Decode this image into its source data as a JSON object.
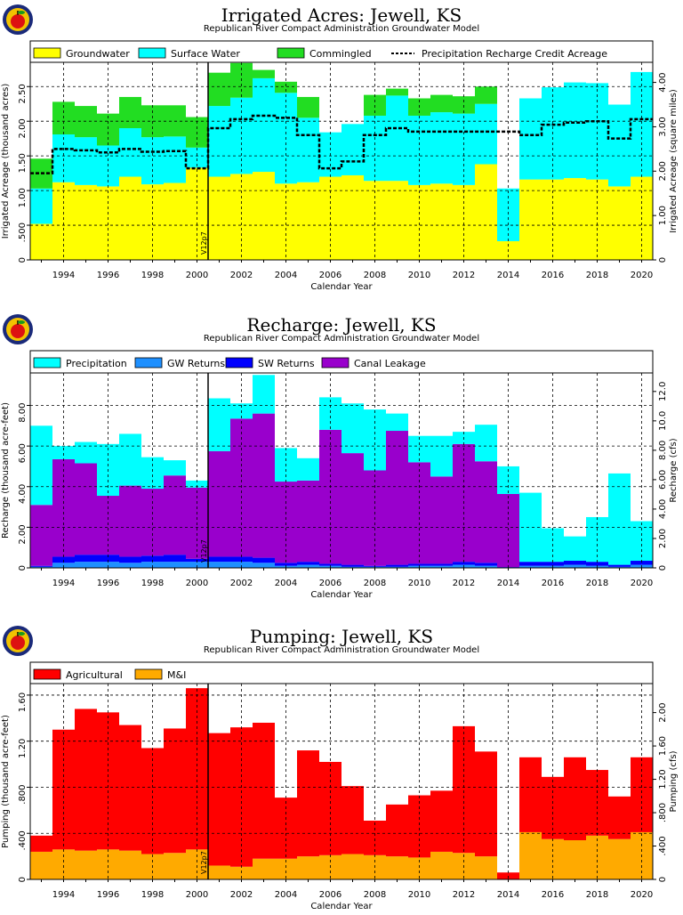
{
  "colors": {
    "groundwater": "#ffff00",
    "surface_water": "#00ffff",
    "commingled": "#22dd22",
    "precip_credit_line": "#000000",
    "precipitation": "#00ffff",
    "gw_returns": "#1e90ff",
    "sw_returns": "#0000ff",
    "canal_leakage": "#9900cc",
    "agricultural": "#ff0000",
    "mi": "#ffaa00",
    "logo_ring": "#1a2a7a",
    "logo_fill": "#f2c200",
    "apple": "#dd1111"
  },
  "logo_icon": "apple-logo-icon",
  "marker_label": "V12p7",
  "marker_x": 2000.5,
  "chart_data": [
    {
      "type": "bar",
      "stacked": true,
      "title": "Irrigated Acres: Jewell, KS",
      "subtitle": "Republican River Compact Administration Groundwater Model",
      "xlabel": "Calendar Year",
      "ylabel": "Irrigated Acreage (thousand acres)",
      "ylabel_right": "Irrigated Acreage (square miles)",
      "x": [
        1993,
        1994,
        1995,
        1996,
        1997,
        1998,
        1999,
        2000,
        2001,
        2002,
        2003,
        2004,
        2005,
        2006,
        2007,
        2008,
        2009,
        2010,
        2011,
        2012,
        2013,
        2014,
        2015,
        2016,
        2017,
        2018,
        2019,
        2020
      ],
      "xlim": [
        1992.5,
        2020.5
      ],
      "ylim": [
        0,
        2.85
      ],
      "yticks": [
        0,
        0.5,
        1.0,
        1.5,
        2.0,
        2.5
      ],
      "ytick_labels": [
        "0",
        ".500",
        "1.00",
        "1.50",
        "2.00",
        "2.50"
      ],
      "ylim_right": [
        0,
        4.453
      ],
      "yticks_right": [
        0,
        1.0,
        2.0,
        3.0,
        4.0
      ],
      "ytick_labels_right": [
        "0",
        "1.00",
        "2.00",
        "3.00",
        "4.00"
      ],
      "xtick_labels": [
        "1994",
        "1996",
        "1998",
        "2000",
        "2002",
        "2004",
        "2006",
        "2008",
        "2010",
        "2012",
        "2014",
        "2016",
        "2018",
        "2020"
      ],
      "grid": true,
      "legend_position": "top",
      "series": [
        {
          "name": "Groundwater",
          "color_key": "groundwater",
          "values": [
            0.52,
            1.12,
            1.08,
            1.06,
            1.2,
            1.09,
            1.11,
            1.33,
            1.2,
            1.24,
            1.27,
            1.1,
            1.12,
            1.2,
            1.22,
            1.14,
            1.14,
            1.08,
            1.1,
            1.08,
            1.38,
            0.27,
            1.16,
            1.16,
            1.18,
            1.16,
            1.06,
            1.2
          ]
        },
        {
          "name": "Surface Water",
          "color_key": "surface_water",
          "values": [
            0.51,
            0.69,
            0.69,
            0.59,
            0.7,
            0.68,
            0.67,
            0.29,
            1.02,
            1.1,
            1.35,
            1.31,
            0.93,
            0.64,
            0.74,
            0.94,
            1.23,
            1.0,
            1.03,
            1.03,
            0.87,
            0.76,
            1.17,
            1.33,
            1.38,
            1.39,
            1.18,
            1.51
          ]
        },
        {
          "name": "Commingled",
          "color_key": "commingled",
          "values": [
            0.43,
            0.47,
            0.45,
            0.46,
            0.45,
            0.46,
            0.45,
            0.44,
            0.48,
            0.5,
            0.12,
            0.16,
            0.3,
            0.0,
            0.0,
            0.3,
            0.1,
            0.25,
            0.25,
            0.25,
            0.25,
            0.0,
            0.0,
            0.0,
            0.0,
            0.0,
            0.0,
            0.0
          ]
        }
      ],
      "line_series": {
        "name": "Precipitation Recharge Credit Acreage",
        "color_key": "precip_credit_line",
        "values": [
          1.25,
          1.6,
          1.58,
          1.55,
          1.6,
          1.56,
          1.57,
          1.32,
          1.9,
          2.03,
          2.08,
          2.05,
          1.8,
          1.32,
          1.42,
          1.8,
          1.9,
          1.85,
          1.85,
          1.85,
          1.85,
          1.85,
          1.8,
          1.95,
          1.98,
          2.0,
          1.75,
          2.03
        ]
      }
    },
    {
      "type": "bar",
      "stacked": true,
      "title": "Recharge: Jewell, KS",
      "subtitle": "Republican River Compact Administration Groundwater Model",
      "xlabel": "Calendar Year",
      "ylabel": "Recharge (thousand acre-feet)",
      "ylabel_right": "Recharge (cfs)",
      "x": [
        1993,
        1994,
        1995,
        1996,
        1997,
        1998,
        1999,
        2000,
        2001,
        2002,
        2003,
        2004,
        2005,
        2006,
        2007,
        2008,
        2009,
        2010,
        2011,
        2012,
        2013,
        2014,
        2015,
        2016,
        2017,
        2018,
        2019,
        2020
      ],
      "xlim": [
        1992.5,
        2020.5
      ],
      "ylim": [
        0,
        9.6
      ],
      "yticks": [
        0,
        2.0,
        4.0,
        6.0,
        8.0
      ],
      "ytick_labels": [
        "0",
        "2.00",
        "4.00",
        "6.00",
        "8.00"
      ],
      "ylim_right": [
        0,
        13.26
      ],
      "yticks_right": [
        0,
        2.0,
        4.0,
        6.0,
        8.0,
        10.0,
        12.0
      ],
      "ytick_labels_right": [
        "0",
        "2.00",
        "4.00",
        "6.00",
        "8.00",
        "10.0",
        "12.0"
      ],
      "xtick_labels": [
        "1994",
        "1996",
        "1998",
        "2000",
        "2002",
        "2004",
        "2006",
        "2008",
        "2010",
        "2012",
        "2014",
        "2016",
        "2018",
        "2020"
      ],
      "grid": true,
      "legend_position": "top",
      "series": [
        {
          "name": "GW Returns",
          "color_key": "gw_returns",
          "values": [
            0.05,
            0.25,
            0.3,
            0.3,
            0.25,
            0.3,
            0.3,
            0.3,
            0.3,
            0.3,
            0.25,
            0.1,
            0.15,
            0.1,
            0.05,
            0.05,
            0.05,
            0.1,
            0.1,
            0.15,
            0.1,
            0.02,
            0.1,
            0.1,
            0.15,
            0.1,
            0.05,
            0.15
          ]
        },
        {
          "name": "SW Returns",
          "color_key": "sw_returns",
          "values": [
            0.05,
            0.3,
            0.35,
            0.35,
            0.3,
            0.3,
            0.35,
            0.15,
            0.25,
            0.25,
            0.25,
            0.15,
            0.15,
            0.1,
            0.1,
            0.05,
            0.1,
            0.1,
            0.1,
            0.15,
            0.15,
            0.02,
            0.2,
            0.2,
            0.2,
            0.2,
            0.1,
            0.2
          ]
        },
        {
          "name": "Canal Leakage",
          "color_key": "canal_leakage",
          "values": [
            3.0,
            4.8,
            4.5,
            2.9,
            3.5,
            3.3,
            3.9,
            3.5,
            5.2,
            6.8,
            7.1,
            4.0,
            4.0,
            6.6,
            5.5,
            4.7,
            6.6,
            5.0,
            4.3,
            5.8,
            5.0,
            3.6,
            0.0,
            0.0,
            0.0,
            0.0,
            0.0,
            0.0
          ]
        },
        {
          "name": "Precipitation",
          "color_key": "precipitation",
          "values": [
            3.9,
            0.65,
            1.05,
            2.55,
            2.55,
            1.55,
            0.75,
            0.35,
            2.6,
            0.75,
            1.9,
            1.65,
            1.1,
            1.6,
            2.45,
            3.0,
            0.85,
            1.3,
            2.0,
            0.6,
            1.8,
            1.36,
            3.4,
            1.65,
            1.2,
            2.2,
            4.5,
            1.95
          ]
        }
      ],
      "series_order_note": ""
    },
    {
      "type": "bar",
      "stacked": true,
      "title": "Pumping: Jewell, KS",
      "subtitle": "Republican River Compact Administration Groundwater Model",
      "xlabel": "Calendar Year",
      "ylabel": "Pumping (thousand acre-feet)",
      "ylabel_right": "Pumping (cfs)",
      "x": [
        1993,
        1994,
        1995,
        1996,
        1997,
        1998,
        1999,
        2000,
        2001,
        2002,
        2003,
        2004,
        2005,
        2006,
        2007,
        2008,
        2009,
        2010,
        2011,
        2012,
        2013,
        2014,
        2015,
        2016,
        2017,
        2018,
        2019,
        2020
      ],
      "xlim": [
        1992.5,
        2020.5
      ],
      "ylim": [
        0,
        1.7
      ],
      "yticks": [
        0,
        0.4,
        0.8,
        1.2,
        1.6
      ],
      "ytick_labels": [
        "0",
        ".400",
        ".800",
        "1.20",
        "1.60"
      ],
      "ylim_right": [
        0,
        2.348
      ],
      "yticks_right": [
        0,
        0.4,
        0.8,
        1.2,
        1.6,
        2.0
      ],
      "ytick_labels_right": [
        "0",
        ".400",
        ".800",
        "1.20",
        "1.60",
        "2.00"
      ],
      "xtick_labels": [
        "1994",
        "1996",
        "1998",
        "2000",
        "2002",
        "2004",
        "2006",
        "2008",
        "2010",
        "2012",
        "2014",
        "2016",
        "2018",
        "2020"
      ],
      "grid": true,
      "legend_position": "top",
      "series": [
        {
          "name": "M&I",
          "color_key": "mi",
          "values": [
            0.24,
            0.26,
            0.25,
            0.26,
            0.25,
            0.22,
            0.23,
            0.26,
            0.12,
            0.11,
            0.18,
            0.18,
            0.2,
            0.21,
            0.22,
            0.21,
            0.2,
            0.19,
            0.24,
            0.23,
            0.2,
            0.0,
            0.41,
            0.35,
            0.34,
            0.38,
            0.35,
            0.41
          ]
        },
        {
          "name": "Agricultural",
          "color_key": "agricultural",
          "values": [
            0.14,
            1.04,
            1.23,
            1.19,
            1.09,
            0.92,
            1.08,
            1.4,
            1.15,
            1.21,
            1.18,
            0.53,
            0.92,
            0.81,
            0.59,
            0.3,
            0.45,
            0.54,
            0.53,
            1.1,
            0.91,
            0.06,
            0.65,
            0.54,
            0.72,
            0.57,
            0.37,
            0.65
          ]
        }
      ]
    }
  ],
  "legends": [
    {
      "items": [
        {
          "label": "Groundwater",
          "color_key": "groundwater",
          "kind": "box"
        },
        {
          "label": "Surface Water",
          "color_key": "surface_water",
          "kind": "box"
        },
        {
          "label": "Commingled",
          "color_key": "commingled",
          "kind": "box"
        },
        {
          "label": "Precipitation Recharge Credit Acreage",
          "color_key": "precip_credit_line",
          "kind": "dash"
        }
      ]
    },
    {
      "items": [
        {
          "label": "Precipitation",
          "color_key": "precipitation",
          "kind": "box"
        },
        {
          "label": "GW Returns",
          "color_key": "gw_returns",
          "kind": "box"
        },
        {
          "label": "SW Returns",
          "color_key": "sw_returns",
          "kind": "box"
        },
        {
          "label": "Canal Leakage",
          "color_key": "canal_leakage",
          "kind": "box"
        }
      ]
    },
    {
      "items": [
        {
          "label": "Agricultural",
          "color_key": "agricultural",
          "kind": "box"
        },
        {
          "label": "M&I",
          "color_key": "mi",
          "kind": "box"
        }
      ]
    }
  ]
}
